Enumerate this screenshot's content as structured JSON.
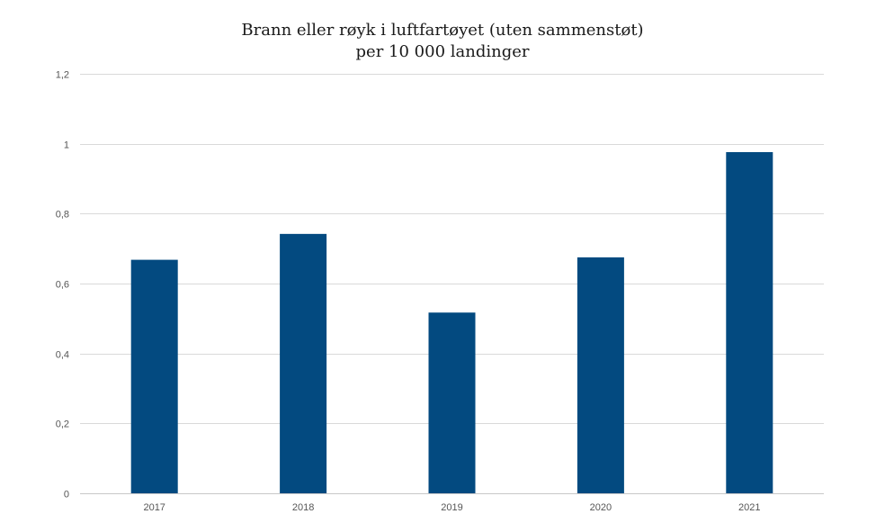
{
  "chart_data": {
    "type": "bar",
    "title_lines": [
      "Brann eller røyk i luftfartøyet (uten sammenstøt)",
      "per 10 000 landinger"
    ],
    "categories": [
      "2017",
      "2018",
      "2019",
      "2020",
      "2021"
    ],
    "values": [
      0.668,
      0.742,
      0.517,
      0.675,
      0.976
    ],
    "yticks": [
      "0",
      "0,2",
      "0,4",
      "0,6",
      "0,8",
      "1",
      "1,2"
    ],
    "ylim": [
      0,
      1.2
    ],
    "grid": true,
    "legend": "none",
    "bar_color": "#034a80"
  }
}
